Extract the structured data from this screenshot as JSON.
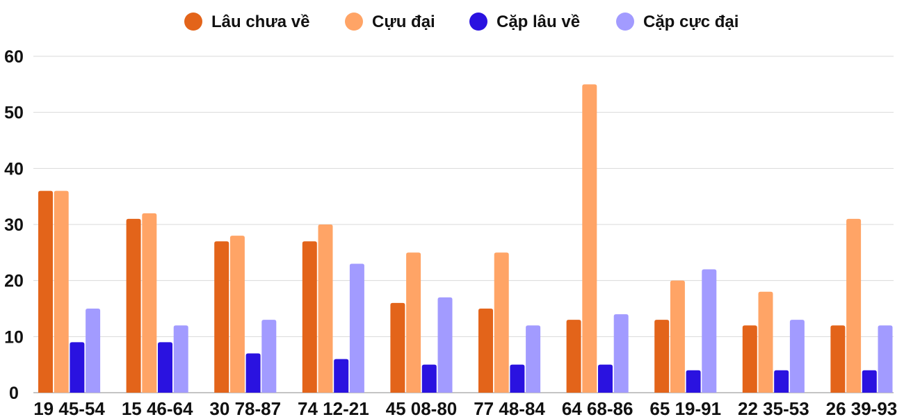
{
  "chart_data": {
    "type": "bar",
    "categories": [
      "19 45-54",
      "15 46-64",
      "30 78-87",
      "74 12-21",
      "45 08-80",
      "77 48-84",
      "64 68-86",
      "65 19-91",
      "22 35-53",
      "26 39-93"
    ],
    "series": [
      {
        "name": "Lâu chưa về",
        "color": "#e3641a",
        "values": [
          36,
          31,
          27,
          27,
          16,
          15,
          13,
          13,
          12,
          12
        ]
      },
      {
        "name": "Cựu đại",
        "color": "#ffa466",
        "values": [
          36,
          32,
          28,
          30,
          25,
          25,
          55,
          20,
          18,
          31
        ]
      },
      {
        "name": "Cặp lâu về",
        "color": "#2a12e0",
        "values": [
          9,
          9,
          7,
          6,
          5,
          5,
          5,
          4,
          4,
          4
        ]
      },
      {
        "name": "Cặp cực đại",
        "color": "#a29bff",
        "values": [
          15,
          12,
          13,
          23,
          17,
          12,
          14,
          22,
          13,
          12
        ]
      }
    ],
    "yticks": [
      "0",
      "10",
      "20",
      "30",
      "40",
      "50",
      "60"
    ],
    "ylim": [
      0,
      60
    ],
    "grid": true,
    "legend_position": "top-center"
  }
}
